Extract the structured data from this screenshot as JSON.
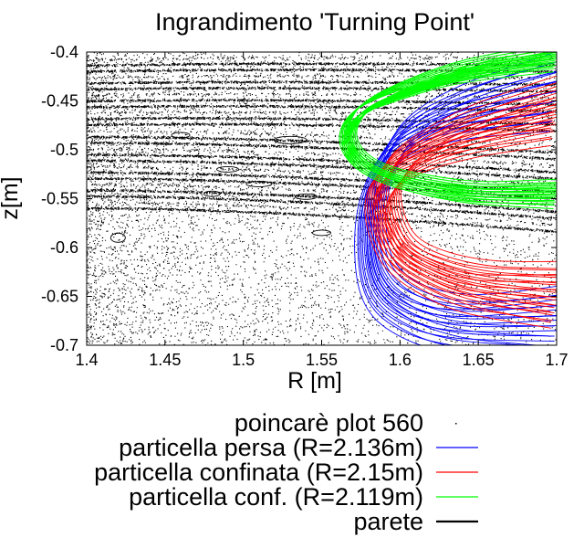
{
  "chart_data": {
    "type": "line",
    "title": "Ingrandimento 'Turning Point'",
    "xlabel": "R [m]",
    "ylabel": "z[m]",
    "xlim": [
      1.4,
      1.7
    ],
    "ylim": [
      -0.7,
      -0.4
    ],
    "xticks": [
      1.4,
      1.45,
      1.5,
      1.55,
      1.6,
      1.65,
      1.7
    ],
    "xtick_labels": [
      "1.4",
      "1.45",
      "1.5",
      "1.55",
      "1.6",
      "1.65",
      "1.7"
    ],
    "yticks": [
      -0.4,
      -0.45,
      -0.5,
      -0.55,
      -0.6,
      -0.65,
      -0.7
    ],
    "ytick_labels": [
      "-0.4",
      "-0.45",
      "-0.5",
      "-0.55",
      "-0.6",
      "-0.65",
      "-0.7"
    ],
    "grid": false,
    "legend_position": "bottom-right, below plot",
    "series": [
      {
        "name": "poincarè plot 560",
        "style": "points",
        "color": "#000000"
      },
      {
        "name": "particella persa (R=2.136m)",
        "style": "line",
        "color": "#0000ff",
        "turning_point": {
          "R": 1.575,
          "z": -0.6
        },
        "orbits": [
          {
            "R": [
              1.7,
              1.64,
              1.6,
              1.585,
              1.58,
              1.585,
              1.605,
              1.64,
              1.7
            ],
            "z": [
              -0.44,
              -0.46,
              -0.49,
              -0.53,
              -0.58,
              -0.635,
              -0.665,
              -0.68,
              -0.68
            ]
          },
          {
            "R": [
              1.7,
              1.64,
              1.605,
              1.59,
              1.585,
              1.59,
              1.61,
              1.645,
              1.7
            ],
            "z": [
              -0.45,
              -0.47,
              -0.5,
              -0.54,
              -0.58,
              -0.625,
              -0.655,
              -0.67,
              -0.67
            ]
          },
          {
            "R": [
              1.7,
              1.635,
              1.598,
              1.582,
              1.577,
              1.582,
              1.6,
              1.635,
              1.7
            ],
            "z": [
              -0.43,
              -0.455,
              -0.485,
              -0.53,
              -0.585,
              -0.64,
              -0.67,
              -0.685,
              -0.685
            ]
          }
        ]
      },
      {
        "name": "particella confinata (R=2.15m)",
        "style": "line",
        "color": "#ff0000",
        "turning_point": {
          "R": 1.585,
          "z": -0.55
        },
        "orbits": [
          {
            "R": [
              1.7,
              1.65,
              1.615,
              1.595,
              1.588,
              1.59,
              1.6,
              1.62,
              1.65,
              1.7
            ],
            "z": [
              -0.46,
              -0.48,
              -0.5,
              -0.52,
              -0.545,
              -0.575,
              -0.605,
              -0.625,
              -0.64,
              -0.65
            ]
          },
          {
            "R": [
              1.7,
              1.655,
              1.622,
              1.603,
              1.596,
              1.598,
              1.607,
              1.627,
              1.657,
              1.7
            ],
            "z": [
              -0.47,
              -0.488,
              -0.507,
              -0.527,
              -0.55,
              -0.577,
              -0.602,
              -0.62,
              -0.633,
              -0.64
            ]
          },
          {
            "R": [
              1.7,
              1.645,
              1.61,
              1.59,
              1.583,
              1.585,
              1.595,
              1.615,
              1.645,
              1.7
            ],
            "z": [
              -0.45,
              -0.472,
              -0.495,
              -0.517,
              -0.542,
              -0.575,
              -0.607,
              -0.63,
              -0.647,
              -0.655
            ]
          }
        ]
      },
      {
        "name": "particella conf. (R=2.119m)",
        "style": "line",
        "color": "#00ff00",
        "turning_point": {
          "R": 1.565,
          "z": -0.48
        },
        "orbits": [
          {
            "R": [
              1.7,
              1.64,
              1.6,
              1.575,
              1.565,
              1.567,
              1.58,
              1.605,
              1.645,
              1.7
            ],
            "z": [
              -0.4,
              -0.415,
              -0.435,
              -0.455,
              -0.477,
              -0.5,
              -0.52,
              -0.535,
              -0.545,
              -0.545
            ]
          },
          {
            "R": [
              1.7,
              1.645,
              1.605,
              1.58,
              1.57,
              1.572,
              1.585,
              1.61,
              1.65,
              1.7
            ],
            "z": [
              -0.405,
              -0.42,
              -0.44,
              -0.46,
              -0.48,
              -0.5,
              -0.517,
              -0.53,
              -0.54,
              -0.54
            ]
          },
          {
            "R": [
              1.7,
              1.64,
              1.6,
              1.576,
              1.567,
              1.569,
              1.582,
              1.607,
              1.647,
              1.7
            ],
            "z": [
              -0.41,
              -0.425,
              -0.445,
              -0.462,
              -0.482,
              -0.503,
              -0.522,
              -0.536,
              -0.547,
              -0.55
            ]
          }
        ]
      },
      {
        "name": "parete",
        "style": "line",
        "color": "#000000"
      }
    ]
  }
}
